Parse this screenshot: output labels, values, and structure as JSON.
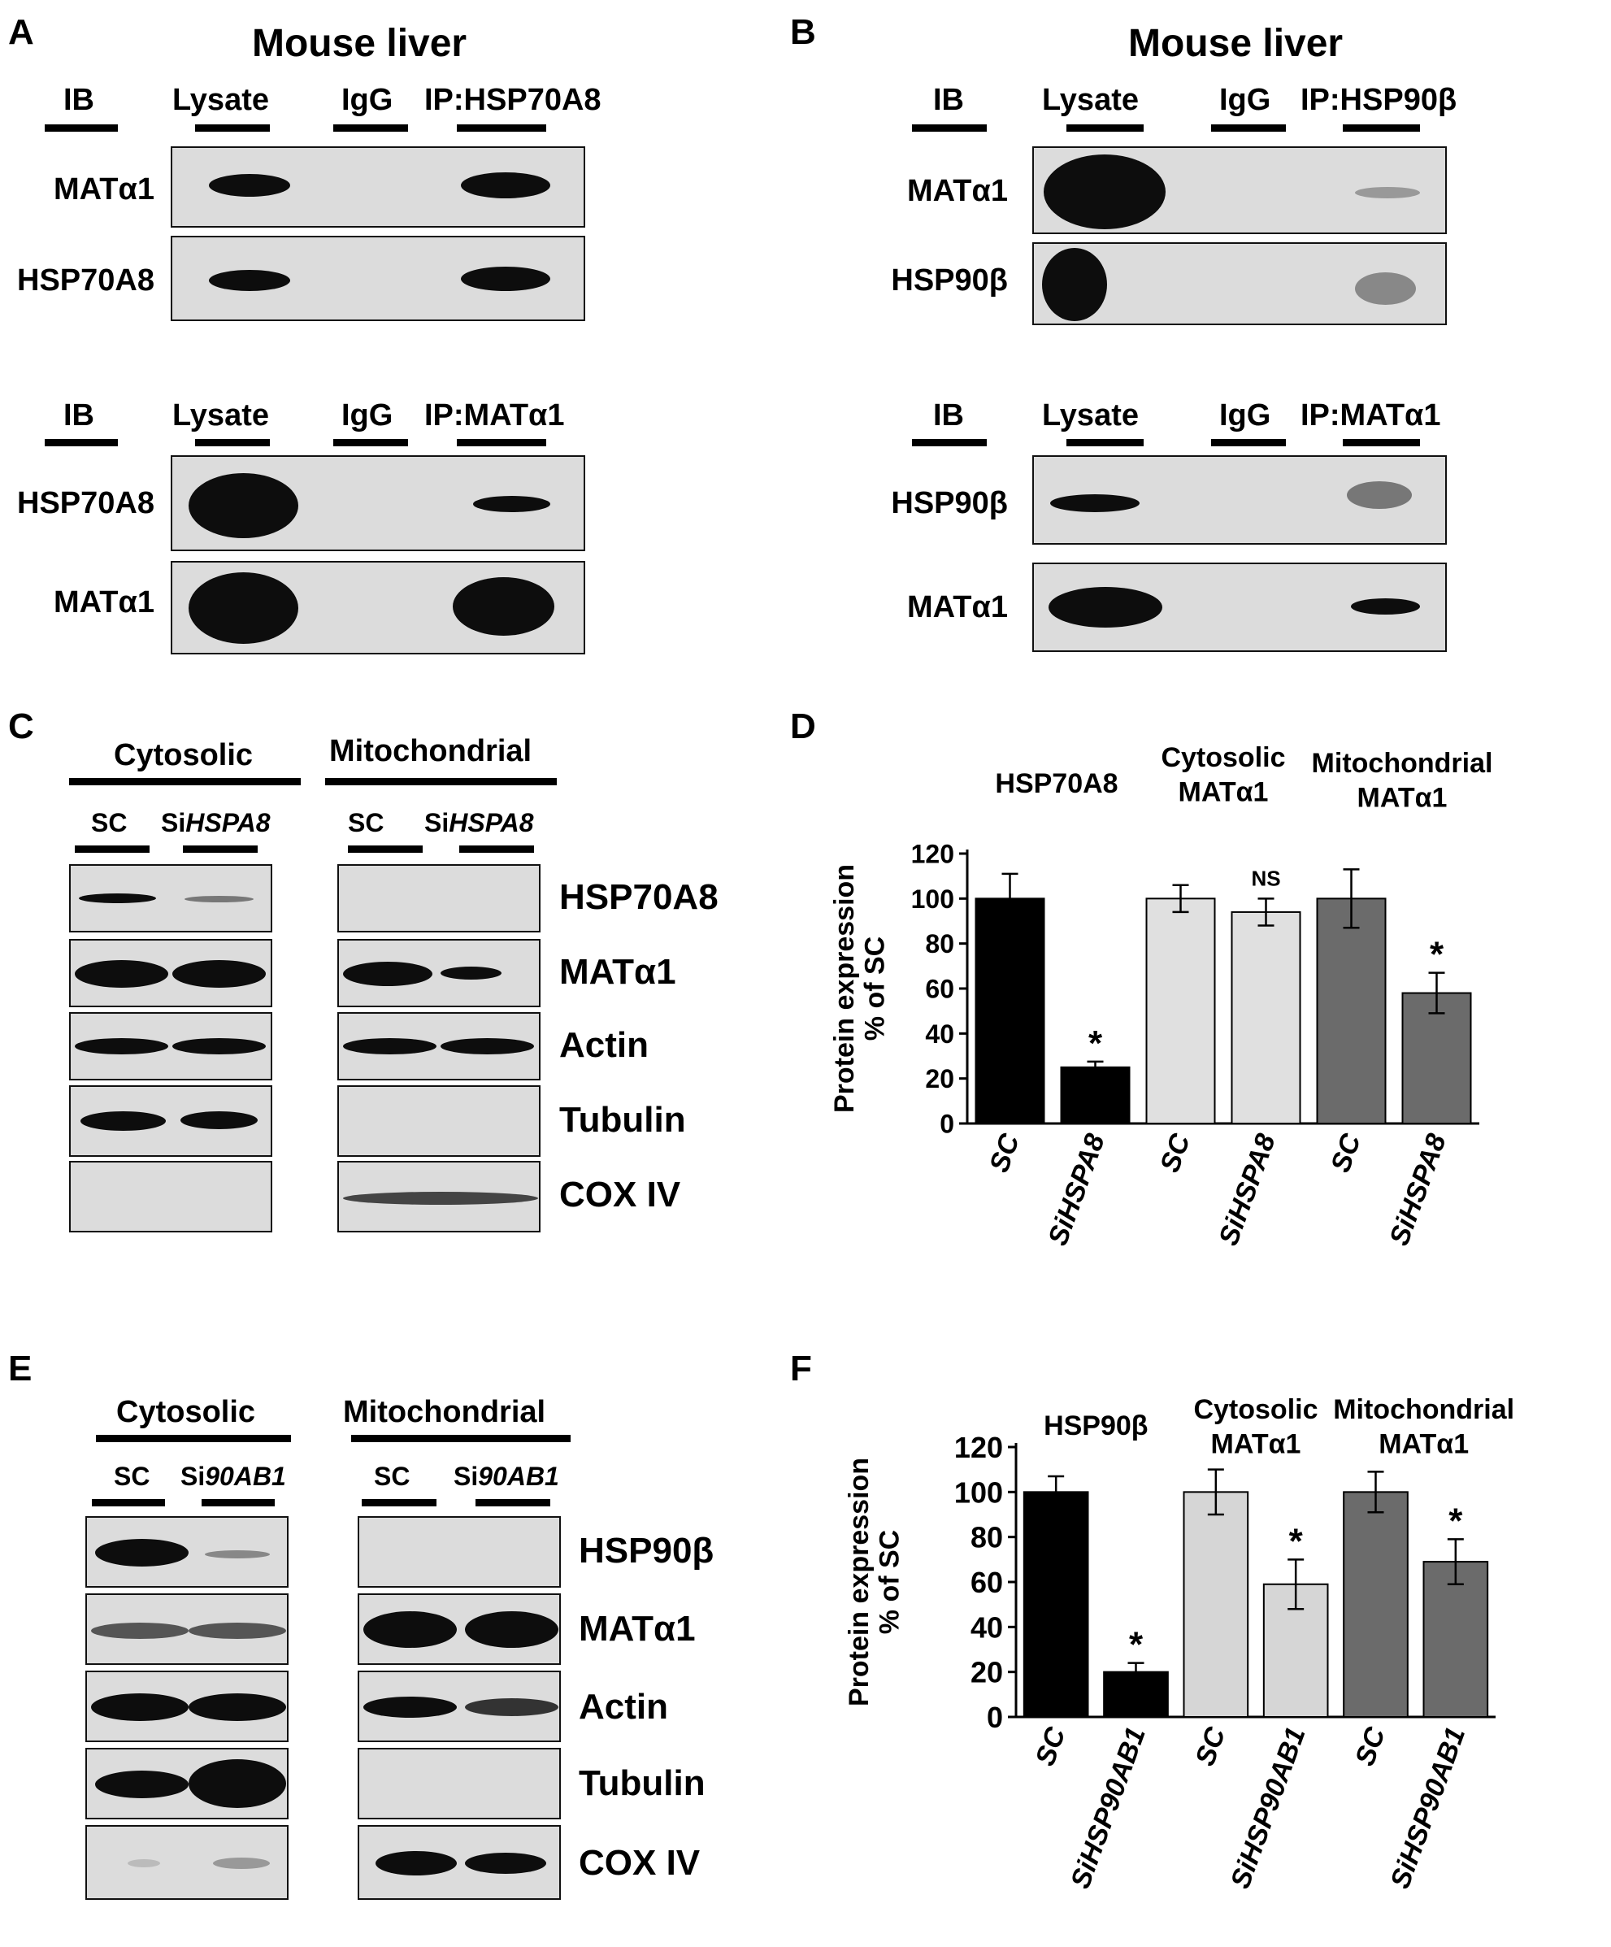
{
  "panels": {
    "A": {
      "label": "A",
      "title": "Mouse liver",
      "top": {
        "ib": "IB",
        "lanes": [
          "Lysate",
          "IgG",
          "IP:HSP70A8"
        ],
        "rows": [
          "MATα1",
          "HSP70A8"
        ]
      },
      "bottom": {
        "ib": "IB",
        "lanes": [
          "Lysate",
          "IgG",
          "IP:MATα1"
        ],
        "rows": [
          "HSP70A8",
          "MATα1"
        ]
      }
    },
    "B": {
      "label": "B",
      "title": "Mouse liver",
      "top": {
        "ib": "IB",
        "lanes": [
          "Lysate",
          "IgG",
          "IP:HSP90β"
        ],
        "rows": [
          "MATα1",
          "HSP90β"
        ]
      },
      "bottom": {
        "ib": "IB",
        "lanes": [
          "Lysate",
          "IgG",
          "IP:MATα1"
        ],
        "rows": [
          "HSP90β",
          "MATα1"
        ]
      }
    },
    "C": {
      "label": "C",
      "groups": [
        "Cytosolic",
        "Mitochondrial"
      ],
      "lane_sc": "SC",
      "lane_si_prefix": "Si",
      "lane_si_gene": "HSPA8",
      "rows": [
        "HSP70A8",
        "MATα1",
        "Actin",
        "Tubulin",
        "COX IV"
      ]
    },
    "E": {
      "label": "E",
      "groups": [
        "Cytosolic",
        "Mitochondrial"
      ],
      "lane_sc": "SC",
      "lane_si_prefix": "Si",
      "lane_si_gene": "90AB1",
      "rows": [
        "HSP90β",
        "MATα1",
        "Actin",
        "Tubulin",
        "COX IV"
      ]
    }
  },
  "chart_data": [
    {
      "panel": "D",
      "type": "bar",
      "ylabel": "Protein expression\n% of SC",
      "ylim": [
        0,
        120
      ],
      "yticks": [
        0,
        20,
        40,
        60,
        80,
        100,
        120
      ],
      "groups": [
        {
          "label": "HSP70A8",
          "color": "#000000"
        },
        {
          "label": "Cytosolic\nMATα1",
          "color": "#e0e0e0"
        },
        {
          "label": "Mitochondrial\nMATα1",
          "color": "#6b6b6b"
        }
      ],
      "categories": [
        "SC",
        "SiHSPA8",
        "SC",
        "SiHSPA8",
        "SC",
        "SiHSPA8"
      ],
      "values": [
        100,
        25,
        100,
        94,
        100,
        58
      ],
      "errors": [
        11,
        2.5,
        6,
        6,
        13,
        9
      ],
      "annotations": [
        "",
        "*",
        "",
        "NS",
        "",
        "*"
      ]
    },
    {
      "panel": "F",
      "type": "bar",
      "ylabel": "Protein expression\n% of SC",
      "ylim": [
        0,
        120
      ],
      "yticks": [
        0,
        20,
        40,
        60,
        80,
        100,
        120
      ],
      "groups": [
        {
          "label": "HSP90β",
          "color": "#000000"
        },
        {
          "label": "Cytosolic\nMATα1",
          "color": "#d6d6d6"
        },
        {
          "label": "Mitochondrial\nMATα1",
          "color": "#6b6b6b"
        }
      ],
      "categories": [
        "SC",
        "SiHSP90AB1",
        "SC",
        "SiHSP90AB1",
        "SC",
        "SiHSP90AB1"
      ],
      "values": [
        100,
        20,
        100,
        59,
        100,
        69
      ],
      "errors": [
        7,
        4,
        10,
        11,
        9,
        10
      ],
      "annotations": [
        "",
        "*",
        "",
        "*",
        "",
        "*"
      ]
    }
  ],
  "chart_panel_labels": {
    "D": "D",
    "F": "F"
  }
}
